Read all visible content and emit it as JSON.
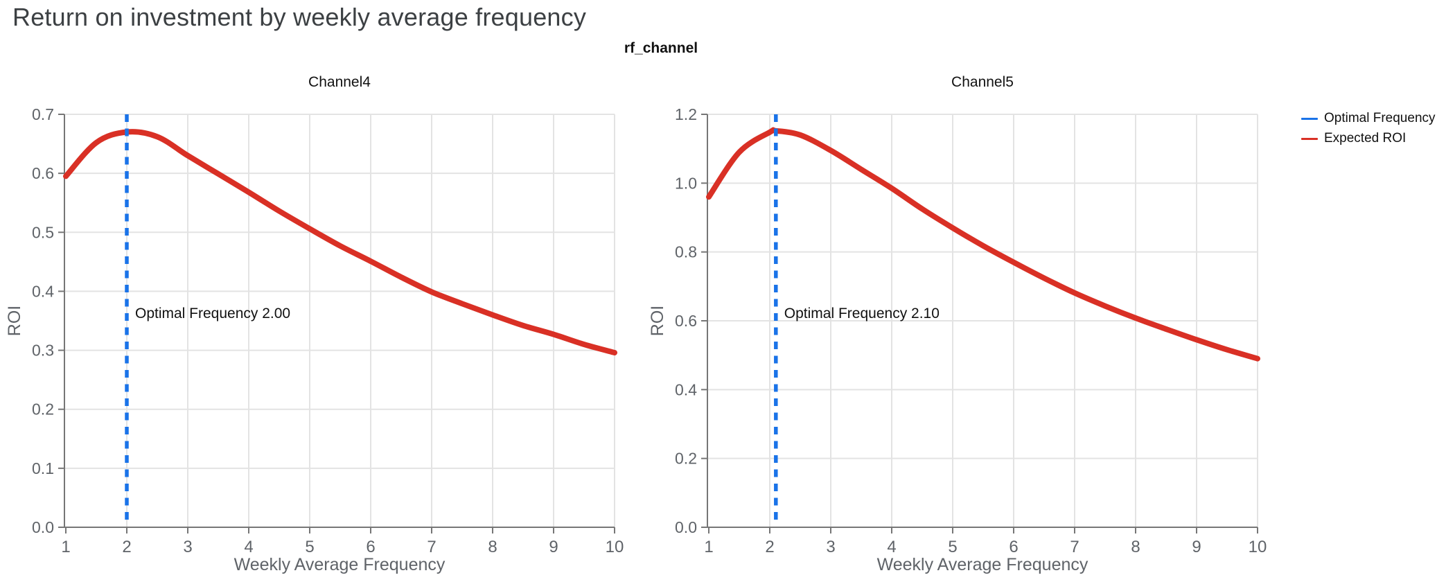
{
  "header": {
    "title": "Return on investment by weekly average frequency"
  },
  "figure": {
    "suptitle": "rf_channel"
  },
  "legend": {
    "position": "top-right",
    "items": [
      {
        "label": "Optimal Frequency",
        "color": "#1a73e8"
      },
      {
        "label": "Expected ROI",
        "color": "#d93025"
      }
    ]
  },
  "colors": {
    "expected_roi_line": "#d93025",
    "optimal_frequency_line": "#1a73e8",
    "grid": "#e3e3e3",
    "axis": "#767676",
    "tick_label": "#5f6368",
    "annotation_text": "#111111"
  },
  "chart_data": [
    {
      "type": "line",
      "title": "Channel4",
      "xlabel": "Weekly Average Frequency",
      "ylabel": "ROI",
      "xlim": [
        1,
        10
      ],
      "xticks": [
        1,
        2,
        3,
        4,
        5,
        6,
        7,
        8,
        9,
        10
      ],
      "ylim": [
        0,
        0.7
      ],
      "yticks": [
        0.0,
        0.1,
        0.2,
        0.3,
        0.4,
        0.5,
        0.6,
        0.7
      ],
      "grid": true,
      "optimal_frequency": 2.0,
      "annotation": "Optimal Frequency  2.00",
      "series": [
        {
          "name": "Expected ROI",
          "x": [
            1,
            1.5,
            2,
            2.5,
            3,
            3.5,
            4,
            4.5,
            5,
            5.5,
            6,
            6.5,
            7,
            7.5,
            8,
            8.5,
            9,
            9.5,
            10
          ],
          "y": [
            0.595,
            0.652,
            0.67,
            0.662,
            0.63,
            0.599,
            0.568,
            0.536,
            0.506,
            0.477,
            0.451,
            0.424,
            0.399,
            0.379,
            0.36,
            0.342,
            0.327,
            0.31,
            0.296
          ]
        }
      ]
    },
    {
      "type": "line",
      "title": "Channel5",
      "xlabel": "Weekly Average Frequency",
      "ylabel": "ROI",
      "xlim": [
        1,
        10
      ],
      "xticks": [
        1,
        2,
        3,
        4,
        5,
        6,
        7,
        8,
        9,
        10
      ],
      "ylim": [
        0,
        1.2
      ],
      "yticks": [
        0.0,
        0.2,
        0.4,
        0.6,
        0.8,
        1.0,
        1.2
      ],
      "grid": true,
      "optimal_frequency": 2.1,
      "annotation": "Optimal Frequency  2.10",
      "series": [
        {
          "name": "Expected ROI",
          "x": [
            1,
            1.5,
            2,
            2.1,
            2.5,
            3,
            3.5,
            4,
            4.5,
            5,
            5.5,
            6,
            6.5,
            7,
            7.5,
            8,
            8.5,
            9,
            9.5,
            10
          ],
          "y": [
            0.96,
            1.09,
            1.148,
            1.152,
            1.14,
            1.095,
            1.04,
            0.985,
            0.925,
            0.87,
            0.818,
            0.77,
            0.724,
            0.681,
            0.643,
            0.608,
            0.576,
            0.545,
            0.516,
            0.49
          ]
        }
      ]
    }
  ]
}
